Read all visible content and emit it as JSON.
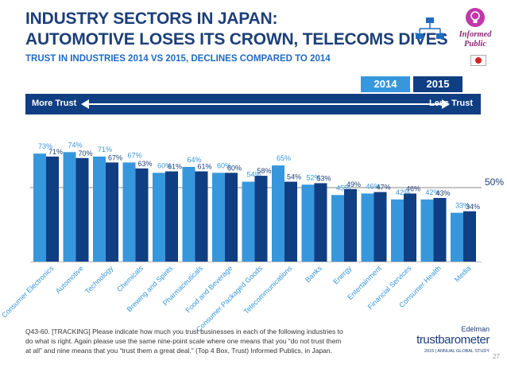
{
  "header": {
    "title_line1": "INDUSTRY SECTORS IN JAPAN:",
    "title_line2": "AUTOMOTIVE LOSES ITS CROWN, TELECOMS DIVES",
    "subtitle": "TRUST IN INDUSTRIES 2014 VS 2015, DECLINES COMPARED TO 2014",
    "badge_line1": "Informed",
    "badge_line2": "Public",
    "icons": [
      "org-chart-icon",
      "lightbulb-icon",
      "japan-flag-icon"
    ]
  },
  "legend": {
    "year_2014": "2014",
    "year_2015": "2015"
  },
  "scale": {
    "left_label": "More Trust",
    "right_label": "Less Trust"
  },
  "benchmark_label": "50%",
  "chart_data": {
    "type": "bar",
    "categories": [
      "Consumer Electronics",
      "Automotive",
      "Technology",
      "Chemicals",
      "Brewing and Spirits",
      "Pharmaceuticals",
      "Food and Beverage",
      "Consumer Packaged Goods",
      "Telecommunications",
      "Banks",
      "Energy",
      "Entertainment",
      "Financial Services",
      "Consumer Health",
      "Media"
    ],
    "series": [
      {
        "name": "2014",
        "values": [
          73,
          74,
          71,
          67,
          60,
          64,
          60,
          54,
          65,
          52,
          45,
          46,
          42,
          42,
          33
        ],
        "labels": [
          "73%",
          "74%",
          "71%",
          "67%",
          "60%",
          "64%",
          "60%",
          "54%",
          "65%",
          "52%",
          "45%",
          "46%",
          "42%",
          "42%",
          "33%"
        ],
        "color": "#3797dc"
      },
      {
        "name": "2015",
        "values": [
          71,
          70,
          67,
          63,
          61,
          61,
          60,
          58,
          54,
          53,
          49,
          47,
          46,
          43,
          34
        ],
        "labels": [
          "71%",
          "70%",
          "67%",
          "63%",
          "61%",
          "61%",
          "60%",
          "58%",
          "54%",
          "53%",
          "49%",
          "47%",
          "46%",
          "43%",
          "34%"
        ],
        "color": "#103e82"
      }
    ],
    "ylim": [
      0,
      85
    ],
    "benchmark": 50,
    "legend": "top-right",
    "grid": false
  },
  "footnote": "Q43-60. [TRACKING] Please indicate how much you trust businesses in each of the following industries to do what is right. Again please use the same nine-point scale where one means that you “do not trust them at all” and nine means that you “trust them a great deal.” (Top 4 Box, Trust) Informed Publics, in Japan.",
  "brand": {
    "line1": "Edelman",
    "line2": "trustbarometer",
    "line3": "2015 | ANNUAL GLOBAL STUDY"
  },
  "page_number": "27"
}
